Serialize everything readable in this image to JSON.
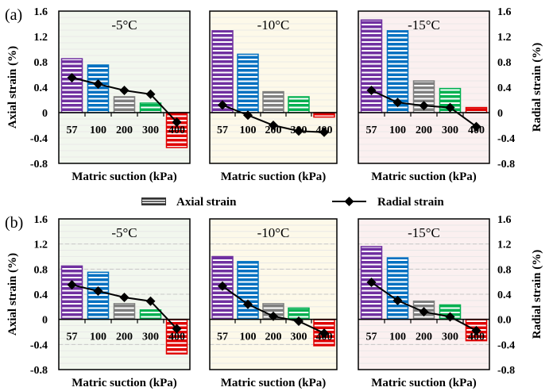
{
  "legend": {
    "axial": "Axial strain",
    "radial": "Radial strain"
  },
  "colors": {
    "categories": [
      "#7030a0",
      "#0070c0",
      "#7f7f7f",
      "#00b050",
      "#e00000"
    ],
    "backgrounds": [
      "#f2f7ee",
      "#fdf9e9",
      "#fbf0f0"
    ],
    "radial_line": "#000000"
  },
  "chart_data": [
    {
      "row_label": "(a)",
      "type": "bar+line",
      "ylabel_left": "Axial strain (%)",
      "ylabel_right": "Radial strain (%)",
      "ylim": [
        -0.8,
        1.6
      ],
      "yticks_left": [
        "1.6",
        "1.2",
        "0.8",
        "0.4",
        "0",
        "-0.4",
        "-0.8"
      ],
      "yticks_right": [
        "1.6",
        "1.2",
        "0.8",
        "0.4",
        "0",
        "-0.4",
        "-0.8"
      ],
      "dashed_grid": false,
      "panels": [
        {
          "title": "-5°C",
          "xlabel": "Matric suction (kPa)",
          "categories": [
            "57",
            "100",
            "200",
            "300",
            "400"
          ],
          "series": [
            {
              "name": "Axial strain",
              "values": [
                0.85,
                0.75,
                0.25,
                0.15,
                -0.55
              ]
            },
            {
              "name": "Radial strain",
              "values": [
                0.55,
                0.45,
                0.35,
                0.29,
                -0.15
              ]
            }
          ]
        },
        {
          "title": "-10°C",
          "xlabel": "Matric suction (kPa)",
          "categories": [
            "57",
            "100",
            "200",
            "300",
            "400"
          ],
          "series": [
            {
              "name": "Axial strain",
              "values": [
                1.29,
                0.92,
                0.33,
                0.25,
                -0.07
              ]
            },
            {
              "name": "Radial strain",
              "values": [
                0.12,
                -0.04,
                -0.2,
                -0.29,
                -0.31
              ]
            }
          ]
        },
        {
          "title": "-15°C",
          "xlabel": "Matric suction (kPa)",
          "categories": [
            "57",
            "100",
            "200",
            "300",
            "400"
          ],
          "series": [
            {
              "name": "Axial strain",
              "values": [
                1.46,
                1.29,
                0.5,
                0.38,
                0.08
              ]
            },
            {
              "name": "Radial strain",
              "values": [
                0.35,
                0.16,
                0.11,
                0.08,
                -0.22
              ]
            }
          ]
        }
      ]
    },
    {
      "row_label": "(b)",
      "type": "bar+line",
      "ylabel_left": "Axial strain (%)",
      "ylabel_right": "Radial strain (%)",
      "ylim": [
        -0.8,
        1.6
      ],
      "yticks_left": [
        "1.6",
        "1.2",
        "0.8",
        "0.4",
        "0",
        "-0.4",
        "-0.8"
      ],
      "yticks_right": [
        "1.6",
        "1.2",
        "0.8",
        "0.4",
        "0.0",
        "-0.4",
        "-0.8"
      ],
      "dashed_grid": true,
      "panels": [
        {
          "title": "-5°C",
          "xlabel": "Matric suction (kPa)",
          "categories": [
            "57",
            "100",
            "200",
            "300",
            "400"
          ],
          "series": [
            {
              "name": "Axial strain",
              "values": [
                0.85,
                0.75,
                0.25,
                0.15,
                -0.55
              ]
            },
            {
              "name": "Radial strain",
              "values": [
                0.55,
                0.45,
                0.35,
                0.29,
                -0.15
              ]
            }
          ]
        },
        {
          "title": "-10°C",
          "xlabel": "Matric suction (kPa)",
          "categories": [
            "57",
            "100",
            "200",
            "300",
            "400"
          ],
          "series": [
            {
              "name": "Axial strain",
              "values": [
                1.0,
                0.92,
                0.25,
                0.18,
                -0.42
              ]
            },
            {
              "name": "Radial strain",
              "values": [
                0.53,
                0.24,
                0.05,
                -0.03,
                -0.22
              ]
            }
          ]
        },
        {
          "title": "-15°C",
          "xlabel": "Matric suction (kPa)",
          "categories": [
            "57",
            "100",
            "200",
            "300",
            "400"
          ],
          "series": [
            {
              "name": "Axial strain",
              "values": [
                1.16,
                0.98,
                0.29,
                0.23,
                -0.34
              ]
            },
            {
              "name": "Radial strain",
              "values": [
                0.59,
                0.3,
                0.12,
                0.04,
                -0.18
              ]
            }
          ]
        }
      ]
    }
  ]
}
